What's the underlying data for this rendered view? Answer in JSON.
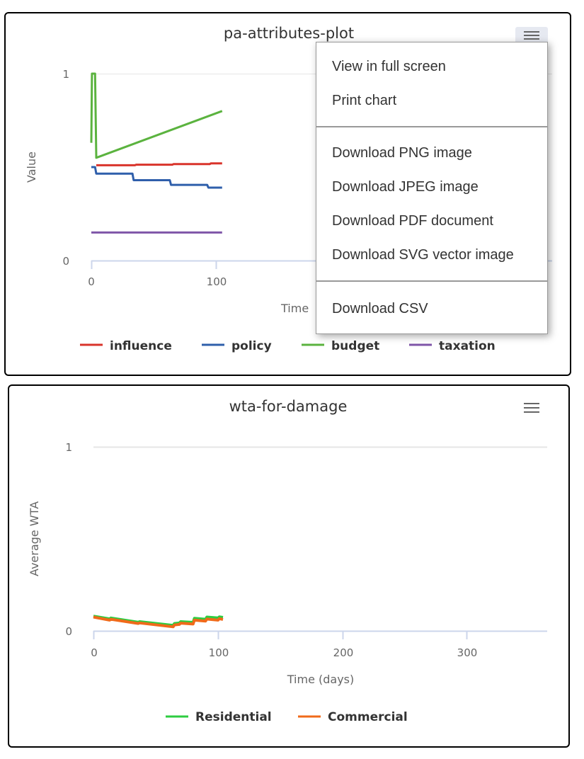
{
  "charts": [
    {
      "id": "pa-attributes-plot",
      "title": "pa-attributes-plot",
      "menu_icon": "hamburger-icon",
      "menu_open": true,
      "y_axis": {
        "title": "Value",
        "ticks": [
          "0",
          "1"
        ]
      },
      "x_axis": {
        "title": "Time (days)",
        "visible_title": "Time",
        "ticks": [
          "0",
          "100"
        ]
      },
      "legend": [
        "influence",
        "policy",
        "budget",
        "taxation"
      ]
    },
    {
      "id": "wta-for-damage",
      "title": "wta-for-damage",
      "menu_icon": "hamburger-icon",
      "menu_open": false,
      "y_axis": {
        "title": "Average WTA",
        "ticks": [
          "0",
          "1"
        ]
      },
      "x_axis": {
        "title": "Time (days)",
        "ticks": [
          "0",
          "100",
          "200",
          "300"
        ]
      },
      "legend": [
        "Residential",
        "Commercial"
      ]
    }
  ],
  "context_menu": {
    "items": [
      {
        "label": "View in full screen",
        "group": 1
      },
      {
        "label": "Print chart",
        "group": 1
      },
      {
        "label": "Download PNG image",
        "group": 2
      },
      {
        "label": "Download JPEG image",
        "group": 2
      },
      {
        "label": "Download PDF document",
        "group": 2
      },
      {
        "label": "Download SVG vector image",
        "group": 2
      },
      {
        "label": "Download CSV",
        "group": 3
      }
    ]
  },
  "colors": {
    "influence": "#d9342b",
    "policy": "#2f5fab",
    "budget": "#5bb33f",
    "taxation": "#7f56a8",
    "residential": "#2ecc40",
    "commercial": "#f06a1a",
    "grid": "#e6e6e6",
    "axis": "#ccd6eb"
  },
  "chart_data": [
    {
      "type": "line",
      "title": "pa-attributes-plot",
      "xlabel": "Time (days)",
      "ylabel": "Value",
      "ylim": [
        0,
        1
      ],
      "xlim": [
        0,
        365
      ],
      "x_ticks": [
        0,
        100
      ],
      "y_ticks": [
        0,
        1
      ],
      "grid": true,
      "legend_position": "bottom",
      "series": [
        {
          "name": "influence",
          "color": "#d9342b",
          "points": [
            [
              4,
              0.51
            ],
            [
              35,
              0.51
            ],
            [
              36,
              0.513
            ],
            [
              65,
              0.513
            ],
            [
              66,
              0.516
            ],
            [
              95,
              0.516
            ],
            [
              96,
              0.52
            ],
            [
              105,
              0.52
            ]
          ]
        },
        {
          "name": "policy",
          "color": "#2f5fab",
          "points": [
            [
              0,
              0.5
            ],
            [
              3,
              0.5
            ],
            [
              4,
              0.465
            ],
            [
              33,
              0.465
            ],
            [
              34,
              0.43
            ],
            [
              63,
              0.43
            ],
            [
              64,
              0.405
            ],
            [
              93,
              0.405
            ],
            [
              94,
              0.39
            ],
            [
              105,
              0.39
            ]
          ]
        },
        {
          "name": "budget",
          "color": "#5bb33f",
          "points": [
            [
              0,
              0.63
            ],
            [
              0.5,
              1.0
            ],
            [
              3,
              1.0
            ],
            [
              4,
              0.55
            ],
            [
              105,
              0.8
            ]
          ]
        },
        {
          "name": "taxation",
          "color": "#7f56a8",
          "points": [
            [
              0,
              0.15
            ],
            [
              105,
              0.15
            ]
          ]
        }
      ]
    },
    {
      "type": "line",
      "title": "wta-for-damage",
      "xlabel": "Time (days)",
      "ylabel": "Average WTA",
      "ylim": [
        0,
        1
      ],
      "xlim": [
        0,
        365
      ],
      "x_ticks": [
        0,
        100,
        200,
        300
      ],
      "y_ticks": [
        0,
        1
      ],
      "grid": true,
      "legend_position": "bottom",
      "series": [
        {
          "name": "Residential",
          "color": "#2ecc40",
          "points": [
            [
              0,
              0.08
            ],
            [
              13,
              0.065
            ],
            [
              14,
              0.07
            ],
            [
              36,
              0.047
            ],
            [
              37,
              0.05
            ],
            [
              64,
              0.03
            ],
            [
              65,
              0.04
            ],
            [
              69,
              0.043
            ],
            [
              70,
              0.05
            ],
            [
              80,
              0.046
            ],
            [
              81,
              0.068
            ],
            [
              90,
              0.063
            ],
            [
              91,
              0.075
            ],
            [
              100,
              0.07
            ],
            [
              101,
              0.076
            ],
            [
              104,
              0.073
            ]
          ]
        },
        {
          "name": "Commercial",
          "color": "#f06a1a",
          "points": [
            [
              0,
              0.075
            ],
            [
              13,
              0.058
            ],
            [
              14,
              0.063
            ],
            [
              36,
              0.04
            ],
            [
              37,
              0.043
            ],
            [
              64,
              0.022
            ],
            [
              65,
              0.032
            ],
            [
              69,
              0.035
            ],
            [
              70,
              0.042
            ],
            [
              80,
              0.037
            ],
            [
              81,
              0.058
            ],
            [
              90,
              0.053
            ],
            [
              91,
              0.064
            ],
            [
              100,
              0.058
            ],
            [
              101,
              0.066
            ],
            [
              104,
              0.062
            ]
          ]
        }
      ]
    }
  ]
}
